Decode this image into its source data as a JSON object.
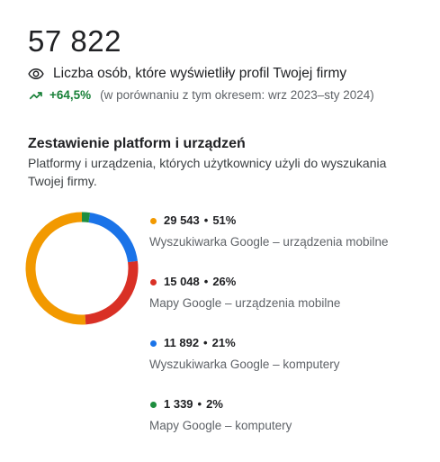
{
  "summary": {
    "total": "57 822",
    "views_label": "Liczba osób, które wyświetliły profil Twojej firmy",
    "trend_value": "+64,5%",
    "trend_compare": "(w porównaniu z tym okresem: wrz 2023–sty 2024)"
  },
  "section": {
    "title": "Zestawienie platform i urządzeń",
    "description": "Platformy i urządzenia, których użytkownicy użyli do wyszukania Twojej firmy."
  },
  "chart_data": {
    "type": "pie",
    "categories": [
      "Wyszukiwarka Google – urządzenia mobilne",
      "Mapy Google – urządzenia mobilne",
      "Wyszukiwarka Google – komputery",
      "Mapy Google – komputery"
    ],
    "values": [
      29543,
      15048,
      11892,
      1339
    ],
    "percents": [
      51,
      26,
      21,
      2
    ],
    "colors": [
      "#f29900",
      "#d93025",
      "#1a73e8",
      "#1e8e3e"
    ]
  },
  "legend": [
    {
      "count": "29 543",
      "percent": "51%",
      "label": "Wyszukiwarka Google – urządzenia mobilne",
      "color": "#f29900"
    },
    {
      "count": "15 048",
      "percent": "26%",
      "label": "Mapy Google – urządzenia mobilne",
      "color": "#d93025"
    },
    {
      "count": "11 892",
      "percent": "21%",
      "label": "Wyszukiwarka Google – komputery",
      "color": "#1a73e8"
    },
    {
      "count": "1 339",
      "percent": "2%",
      "label": "Mapy Google – komputery",
      "color": "#1e8e3e"
    }
  ],
  "separator": "•",
  "icons": {
    "views": "eye-icon",
    "trend": "trending-up-icon"
  }
}
